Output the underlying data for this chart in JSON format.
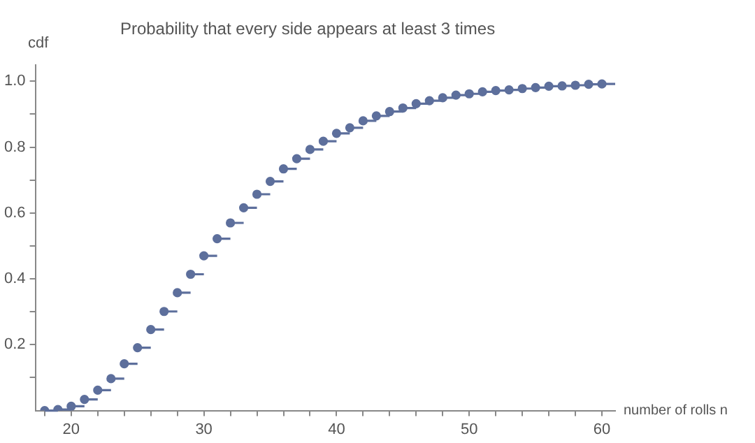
{
  "chart_data": {
    "type": "step",
    "title": "Probability that every side appears at least 3 times",
    "xlabel": "number of rolls n",
    "ylabel": "cdf",
    "marker": "circle",
    "x": [
      18,
      19,
      20,
      21,
      22,
      23,
      24,
      25,
      26,
      27,
      28,
      29,
      30,
      31,
      32,
      33,
      34,
      35,
      36,
      37,
      38,
      39,
      40,
      41,
      42,
      43,
      44,
      45,
      46,
      47,
      48,
      49,
      50,
      51,
      52,
      53,
      54,
      55,
      56,
      57,
      58,
      59,
      60
    ],
    "series": [
      {
        "color": "#5d6f9c",
        "values": [
          0.0,
          0.003,
          0.013,
          0.034,
          0.062,
          0.097,
          0.142,
          0.191,
          0.246,
          0.301,
          0.358,
          0.414,
          0.47,
          0.522,
          0.57,
          0.616,
          0.657,
          0.696,
          0.734,
          0.765,
          0.793,
          0.818,
          0.842,
          0.859,
          0.88,
          0.895,
          0.908,
          0.919,
          0.932,
          0.941,
          0.95,
          0.958,
          0.962,
          0.968,
          0.972,
          0.974,
          0.978,
          0.981,
          0.985,
          0.986,
          0.988,
          0.991,
          0.992
        ]
      }
    ],
    "xlim": [
      17.3,
      61
    ],
    "ylim": [
      0,
      1.05
    ],
    "xticks": [
      {
        "value": 18,
        "label": null
      },
      20,
      {
        "value": 22,
        "label": null
      },
      {
        "value": 24,
        "label": null
      },
      {
        "value": 26,
        "label": null
      },
      {
        "value": 28,
        "label": null
      },
      30,
      {
        "value": 32,
        "label": null
      },
      {
        "value": 34,
        "label": null
      },
      {
        "value": 36,
        "label": null
      },
      {
        "value": 38,
        "label": null
      },
      40,
      {
        "value": 42,
        "label": null
      },
      {
        "value": 44,
        "label": null
      },
      {
        "value": 46,
        "label": null
      },
      {
        "value": 48,
        "label": null
      },
      50,
      {
        "value": 52,
        "label": null
      },
      {
        "value": 54,
        "label": null
      },
      {
        "value": 56,
        "label": null
      },
      {
        "value": 58,
        "label": null
      },
      60
    ],
    "yticks": [
      {
        "value": 0.1,
        "label": null
      },
      0.2,
      {
        "value": 0.3,
        "label": null
      },
      0.4,
      {
        "value": 0.5,
        "label": null
      },
      0.6,
      {
        "value": 0.7,
        "label": null
      },
      0.8,
      {
        "value": 0.9,
        "label": null
      },
      {
        "value": 1.0,
        "label": "1.0"
      }
    ]
  }
}
